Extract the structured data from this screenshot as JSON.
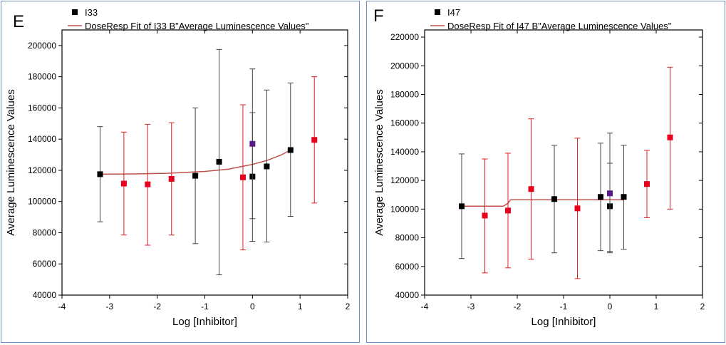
{
  "chart_data": [
    {
      "type": "scatter",
      "panel_label": "E",
      "title": "",
      "xlabel": "Log [Inhibitor]",
      "ylabel": "Average Luminescence Values",
      "xlim": [
        -4,
        2
      ],
      "ylim": [
        40000,
        210000
      ],
      "xticks": [
        -4,
        -3,
        -2,
        -1,
        0,
        1,
        2
      ],
      "yticks": [
        40000,
        60000,
        80000,
        100000,
        120000,
        140000,
        160000,
        180000,
        200000
      ],
      "grid": false,
      "legend_position": "top-left",
      "legend": {
        "marker_label": "I33",
        "fit_label": "DoseResp Fit of I33 B\"Average Luminescence Values\""
      },
      "colors": {
        "black": "#000000",
        "red": "#e8001c",
        "fit": "#c0504d",
        "purple": "#5b1a8a",
        "errbar_black": "#444444",
        "errbar_red": "#e02020"
      },
      "series": [
        {
          "name": "I33",
          "points": [
            {
              "x": -3.2,
              "y": 117500,
              "lo": 87000,
              "hi": 148000,
              "color": "black"
            },
            {
              "x": -2.7,
              "y": 111500,
              "lo": 78500,
              "hi": 144500,
              "color": "red"
            },
            {
              "x": -2.2,
              "y": 111000,
              "lo": 72000,
              "hi": 149500,
              "color": "red"
            },
            {
              "x": -1.7,
              "y": 114500,
              "lo": 78500,
              "hi": 150500,
              "color": "red"
            },
            {
              "x": -1.2,
              "y": 116500,
              "lo": 73000,
              "hi": 160000,
              "color": "black"
            },
            {
              "x": -0.7,
              "y": 125500,
              "lo": 53000,
              "hi": 197500,
              "color": "black"
            },
            {
              "x": -0.2,
              "y": 115500,
              "lo": 69000,
              "hi": 162000,
              "color": "red"
            },
            {
              "x": 0.0,
              "y": 116000,
              "lo": 74500,
              "hi": 157000,
              "color": "black"
            },
            {
              "x": 0.0,
              "y": 137000,
              "lo": 89000,
              "hi": 185000,
              "color": "purple"
            },
            {
              "x": 0.3,
              "y": 122500,
              "lo": 74000,
              "hi": 171500,
              "color": "black"
            },
            {
              "x": 0.8,
              "y": 133000,
              "lo": 90500,
              "hi": 176000,
              "color": "black"
            },
            {
              "x": 1.3,
              "y": 139500,
              "lo": 99000,
              "hi": 180000,
              "color": "red"
            }
          ]
        }
      ],
      "fit": {
        "x": [
          -3.2,
          -2.5,
          -1.8,
          -1.0,
          -0.5,
          0.0,
          0.3,
          0.6,
          0.8
        ],
        "y": [
          117500,
          117700,
          118100,
          119300,
          120800,
          123800,
          126300,
          129800,
          133000
        ]
      }
    },
    {
      "type": "scatter",
      "panel_label": "F",
      "title": "",
      "xlabel": "Log [Inhibitor]",
      "ylabel": "Average Luminescence Values",
      "xlim": [
        -4,
        2
      ],
      "ylim": [
        40000,
        225000
      ],
      "xticks": [
        -4,
        -3,
        -2,
        -1,
        0,
        1,
        2
      ],
      "yticks": [
        40000,
        60000,
        80000,
        100000,
        120000,
        140000,
        160000,
        180000,
        200000,
        220000
      ],
      "grid": false,
      "legend_position": "top-left",
      "legend": {
        "marker_label": "I47",
        "fit_label": "DoseResp Fit of I47 B\"Average Luminescence Values\""
      },
      "colors": {
        "black": "#000000",
        "red": "#e8001c",
        "fit": "#c0504d",
        "purple": "#5b1a8a",
        "errbar_black": "#444444",
        "errbar_red": "#e02020"
      },
      "series": [
        {
          "name": "I47",
          "points": [
            {
              "x": -3.2,
              "y": 102000,
              "lo": 65500,
              "hi": 138500,
              "color": "black"
            },
            {
              "x": -2.7,
              "y": 95500,
              "lo": 55500,
              "hi": 135000,
              "color": "red"
            },
            {
              "x": -2.2,
              "y": 99000,
              "lo": 59000,
              "hi": 139000,
              "color": "red"
            },
            {
              "x": -1.7,
              "y": 114000,
              "lo": 65000,
              "hi": 163000,
              "color": "red"
            },
            {
              "x": -1.2,
              "y": 107000,
              "lo": 69500,
              "hi": 144500,
              "color": "black"
            },
            {
              "x": -0.7,
              "y": 100500,
              "lo": 51500,
              "hi": 149500,
              "color": "red"
            },
            {
              "x": -0.2,
              "y": 108500,
              "lo": 71000,
              "hi": 146000,
              "color": "black"
            },
            {
              "x": 0.0,
              "y": 102000,
              "lo": 69500,
              "hi": 132000,
              "color": "black"
            },
            {
              "x": 0.0,
              "y": 111000,
              "lo": 70500,
              "hi": 153000,
              "color": "purple"
            },
            {
              "x": 0.3,
              "y": 108500,
              "lo": 72000,
              "hi": 144500,
              "color": "black"
            },
            {
              "x": 0.8,
              "y": 117500,
              "lo": 94000,
              "hi": 141000,
              "color": "red"
            },
            {
              "x": 1.3,
              "y": 150000,
              "lo": 100000,
              "hi": 199000,
              "color": "red"
            }
          ]
        }
      ],
      "fit": {
        "x": [
          -3.2,
          -2.3,
          -2.2,
          -2.15,
          0.3
        ],
        "y": [
          102000,
          102000,
          104000,
          106500,
          106500
        ]
      }
    }
  ]
}
